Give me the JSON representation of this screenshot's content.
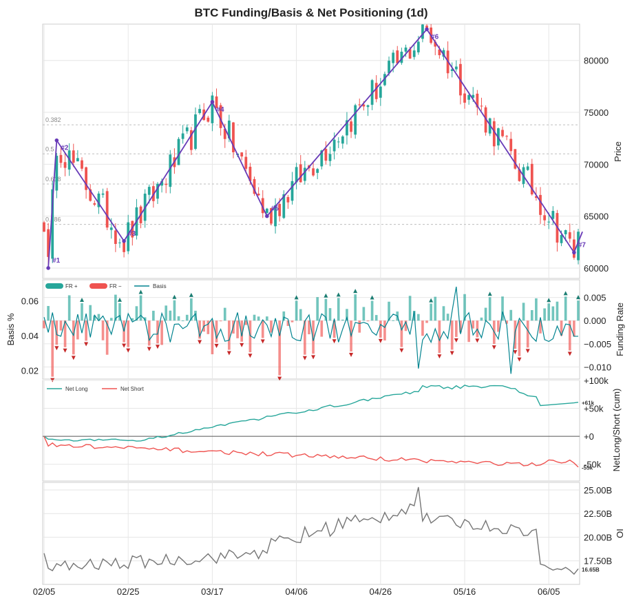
{
  "chart_data": {
    "title": "BTC Funding/Basis & Net Positioning (1d)",
    "x_ticks": [
      "02/05",
      "02/25",
      "03/17",
      "04/06",
      "04/26",
      "05/16",
      "06/05"
    ],
    "panels": [
      {
        "id": "price",
        "type": "candlestick",
        "ylabel": "Price",
        "ylim": [
          59000,
          83500
        ],
        "y_ticks": [
          "60000",
          "65000",
          "70000",
          "75000",
          "80000"
        ],
        "fib_levels": [
          {
            "label": "0.382",
            "price": 73800
          },
          {
            "label": "0.5",
            "price": 71000
          },
          {
            "label": "0.618",
            "price": 68100
          },
          {
            "label": "0.786",
            "price": 64200
          }
        ],
        "wave_points": [
          {
            "label": "#1",
            "day": 1,
            "price": 60000
          },
          {
            "label": "#2",
            "day": 3,
            "price": 72300
          },
          {
            "label": "#3",
            "day": 19,
            "price": 62600
          },
          {
            "label": "#4",
            "day": 40,
            "price": 76000
          },
          {
            "label": "#5",
            "day": 53,
            "price": 65000
          },
          {
            "label": "#6",
            "day": 91,
            "price": 83000
          },
          {
            "label": "#7",
            "day": 126,
            "price": 61500
          },
          {
            "label": "",
            "day": 128,
            "price": 63500
          }
        ],
        "candle_summary": {
          "count": 128,
          "start_close": 63500,
          "end_close": 63500
        }
      },
      {
        "id": "funding_basis",
        "type": "bar+line",
        "ylabel_left": "Basis %",
        "ylabel_right": "Funding Rate",
        "y_ticks_left": [
          "0.02",
          "0.04",
          "0.06"
        ],
        "y_ticks_right": [
          "−0.010",
          "−0.005",
          "0.000",
          "0.005"
        ],
        "legend": [
          "FR +",
          "FR −",
          "Basis"
        ],
        "legend_position": "top-left"
      },
      {
        "id": "net_positioning",
        "type": "line",
        "ylabel": "NetLong/Short (cum)",
        "y_ticks": [
          "+0",
          "+50k",
          "+100k",
          "-50k"
        ],
        "legend": [
          "Net Long",
          "Net Short"
        ],
        "legend_position": "top-left",
        "last_labels": [
          "+61k",
          "-55k"
        ]
      },
      {
        "id": "open_interest",
        "type": "line",
        "ylabel": "OI",
        "y_ticks": [
          "17.50B",
          "20.00B",
          "22.50B",
          "25.00B"
        ],
        "last_label": "16.65B"
      }
    ],
    "colors": {
      "up": "#26a69a",
      "down": "#ef5350",
      "wave": "#673ab7",
      "basis": "#00838f",
      "oi": "#757575"
    }
  }
}
